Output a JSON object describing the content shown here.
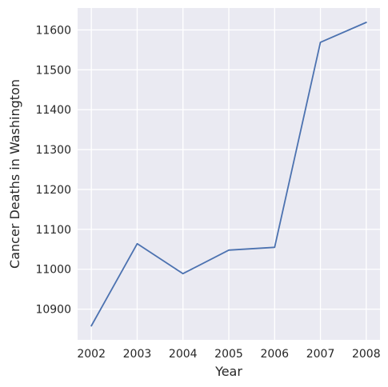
{
  "chart_data": {
    "type": "line",
    "xlabel": "Year",
    "ylabel": "Cancer Deaths in Washington",
    "xlim": [
      2001.7,
      2008.3
    ],
    "ylim": [
      10823,
      11655
    ],
    "x_ticks": [
      2002,
      2003,
      2004,
      2005,
      2006,
      2007,
      2008
    ],
    "y_ticks": [
      10900,
      11000,
      11100,
      11200,
      11300,
      11400,
      11500,
      11600
    ],
    "grid": true,
    "series": [
      {
        "x": [
          2002,
          2003,
          2004,
          2005,
          2006,
          2007,
          2008
        ],
        "values": [
          10858,
          11064,
          10989,
          11048,
          11055,
          11569,
          11619
        ]
      }
    ],
    "colors": {
      "background": "#eaeaf2",
      "grid": "#ffffff",
      "line": "#4c72b0"
    }
  }
}
